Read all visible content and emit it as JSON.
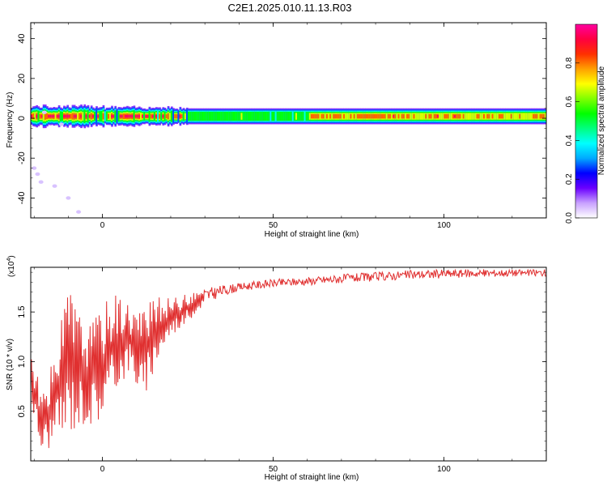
{
  "title": "C2E1.2025.010.11.13.R03",
  "chart_data": [
    {
      "type": "heatmap",
      "xlabel": "Height of straight line (km)",
      "ylabel": "Frequency (Hz)",
      "xlim": [
        -21,
        130
      ],
      "ylim": [
        -50,
        48
      ],
      "xticks": [
        0,
        50,
        100
      ],
      "xtick_labels": [
        "0",
        "50",
        "100"
      ],
      "yticks": [
        -40,
        -20,
        0,
        20,
        40
      ],
      "ytick_labels": [
        "-40",
        "-20",
        "0",
        "20",
        "40"
      ],
      "colorbar": {
        "label": "Normalized spectral amplitude",
        "range": [
          0,
          1
        ],
        "ticks": [
          0.0,
          0.2,
          0.4,
          0.6,
          0.8
        ],
        "tick_labels": [
          "0.0",
          "0.2",
          "0.4",
          "0.6",
          "0.8"
        ],
        "colors": [
          "#ffffff",
          "#c8a0ff",
          "#6a00ff",
          "#0000ff",
          "#00aaff",
          "#00ffff",
          "#00ff80",
          "#00ff00",
          "#80ff00",
          "#ffff00",
          "#ffa000",
          "#ff3000",
          "#ff0040",
          "#ff00a0"
        ]
      },
      "band": {
        "center_hz": 1,
        "segments": [
          {
            "x0": -21,
            "x1": 0,
            "halfwidth": 5,
            "peak": 1.0
          },
          {
            "x0": 0,
            "x1": 20,
            "halfwidth": 4.5,
            "peak": 1.0
          },
          {
            "x0": 20,
            "x1": 60,
            "halfwidth": 4,
            "peak": 0.55
          },
          {
            "x0": 60,
            "x1": 90,
            "halfwidth": 4,
            "peak": 0.8
          },
          {
            "x0": 90,
            "x1": 130,
            "halfwidth": 4,
            "peak": 0.75
          }
        ],
        "hotspots": [
          -19,
          -14,
          -11,
          -7,
          -3,
          2,
          5,
          9,
          12,
          16,
          23,
          85,
          98,
          103
        ],
        "scatter": [
          [
            -20,
            -25
          ],
          [
            -19,
            -28
          ],
          [
            -18,
            -32
          ],
          [
            -14,
            -34
          ],
          [
            -10,
            -40
          ],
          [
            -7,
            -47
          ],
          [
            -17,
            3
          ],
          [
            -12,
            -3
          ]
        ]
      }
    },
    {
      "type": "line",
      "xlabel": "Height of straight line (km)",
      "ylabel": "SNR (10 * v/v)",
      "y_multiplier": "(x10",
      "y_multiplier_exp": "4",
      "y_multiplier_close": ")",
      "xlim": [
        -21,
        130
      ],
      "ylim": [
        0,
        19500
      ],
      "xticks": [
        0,
        50,
        100
      ],
      "xtick_labels": [
        "0",
        "50",
        "100"
      ],
      "yticks": [
        5000,
        10000,
        15000
      ],
      "ytick_labels": [
        "0.5",
        "1.0",
        "1.5"
      ],
      "color": "#e03030",
      "envelope": [
        [
          -21,
          6000,
          11500
        ],
        [
          -18,
          700,
          7000
        ],
        [
          -14,
          1500,
          10500
        ],
        [
          -10,
          2500,
          18000
        ],
        [
          -6,
          3500,
          14500
        ],
        [
          -3,
          3500,
          14000
        ],
        [
          0,
          4000,
          16000
        ],
        [
          4,
          7000,
          17200
        ],
        [
          8,
          9000,
          16000
        ],
        [
          12,
          5500,
          15500
        ],
        [
          16,
          10000,
          16500
        ],
        [
          20,
          12500,
          16500
        ],
        [
          25,
          14000,
          16800
        ],
        [
          30,
          15800,
          17400
        ],
        [
          35,
          16600,
          17700
        ],
        [
          40,
          17100,
          17900
        ],
        [
          50,
          17500,
          18300
        ],
        [
          60,
          17700,
          18500
        ],
        [
          70,
          17900,
          18800
        ],
        [
          80,
          18100,
          19000
        ],
        [
          90,
          18300,
          19200
        ],
        [
          100,
          18400,
          19300
        ],
        [
          110,
          18500,
          19300
        ],
        [
          120,
          18600,
          19300
        ],
        [
          130,
          18600,
          19300
        ]
      ]
    }
  ]
}
